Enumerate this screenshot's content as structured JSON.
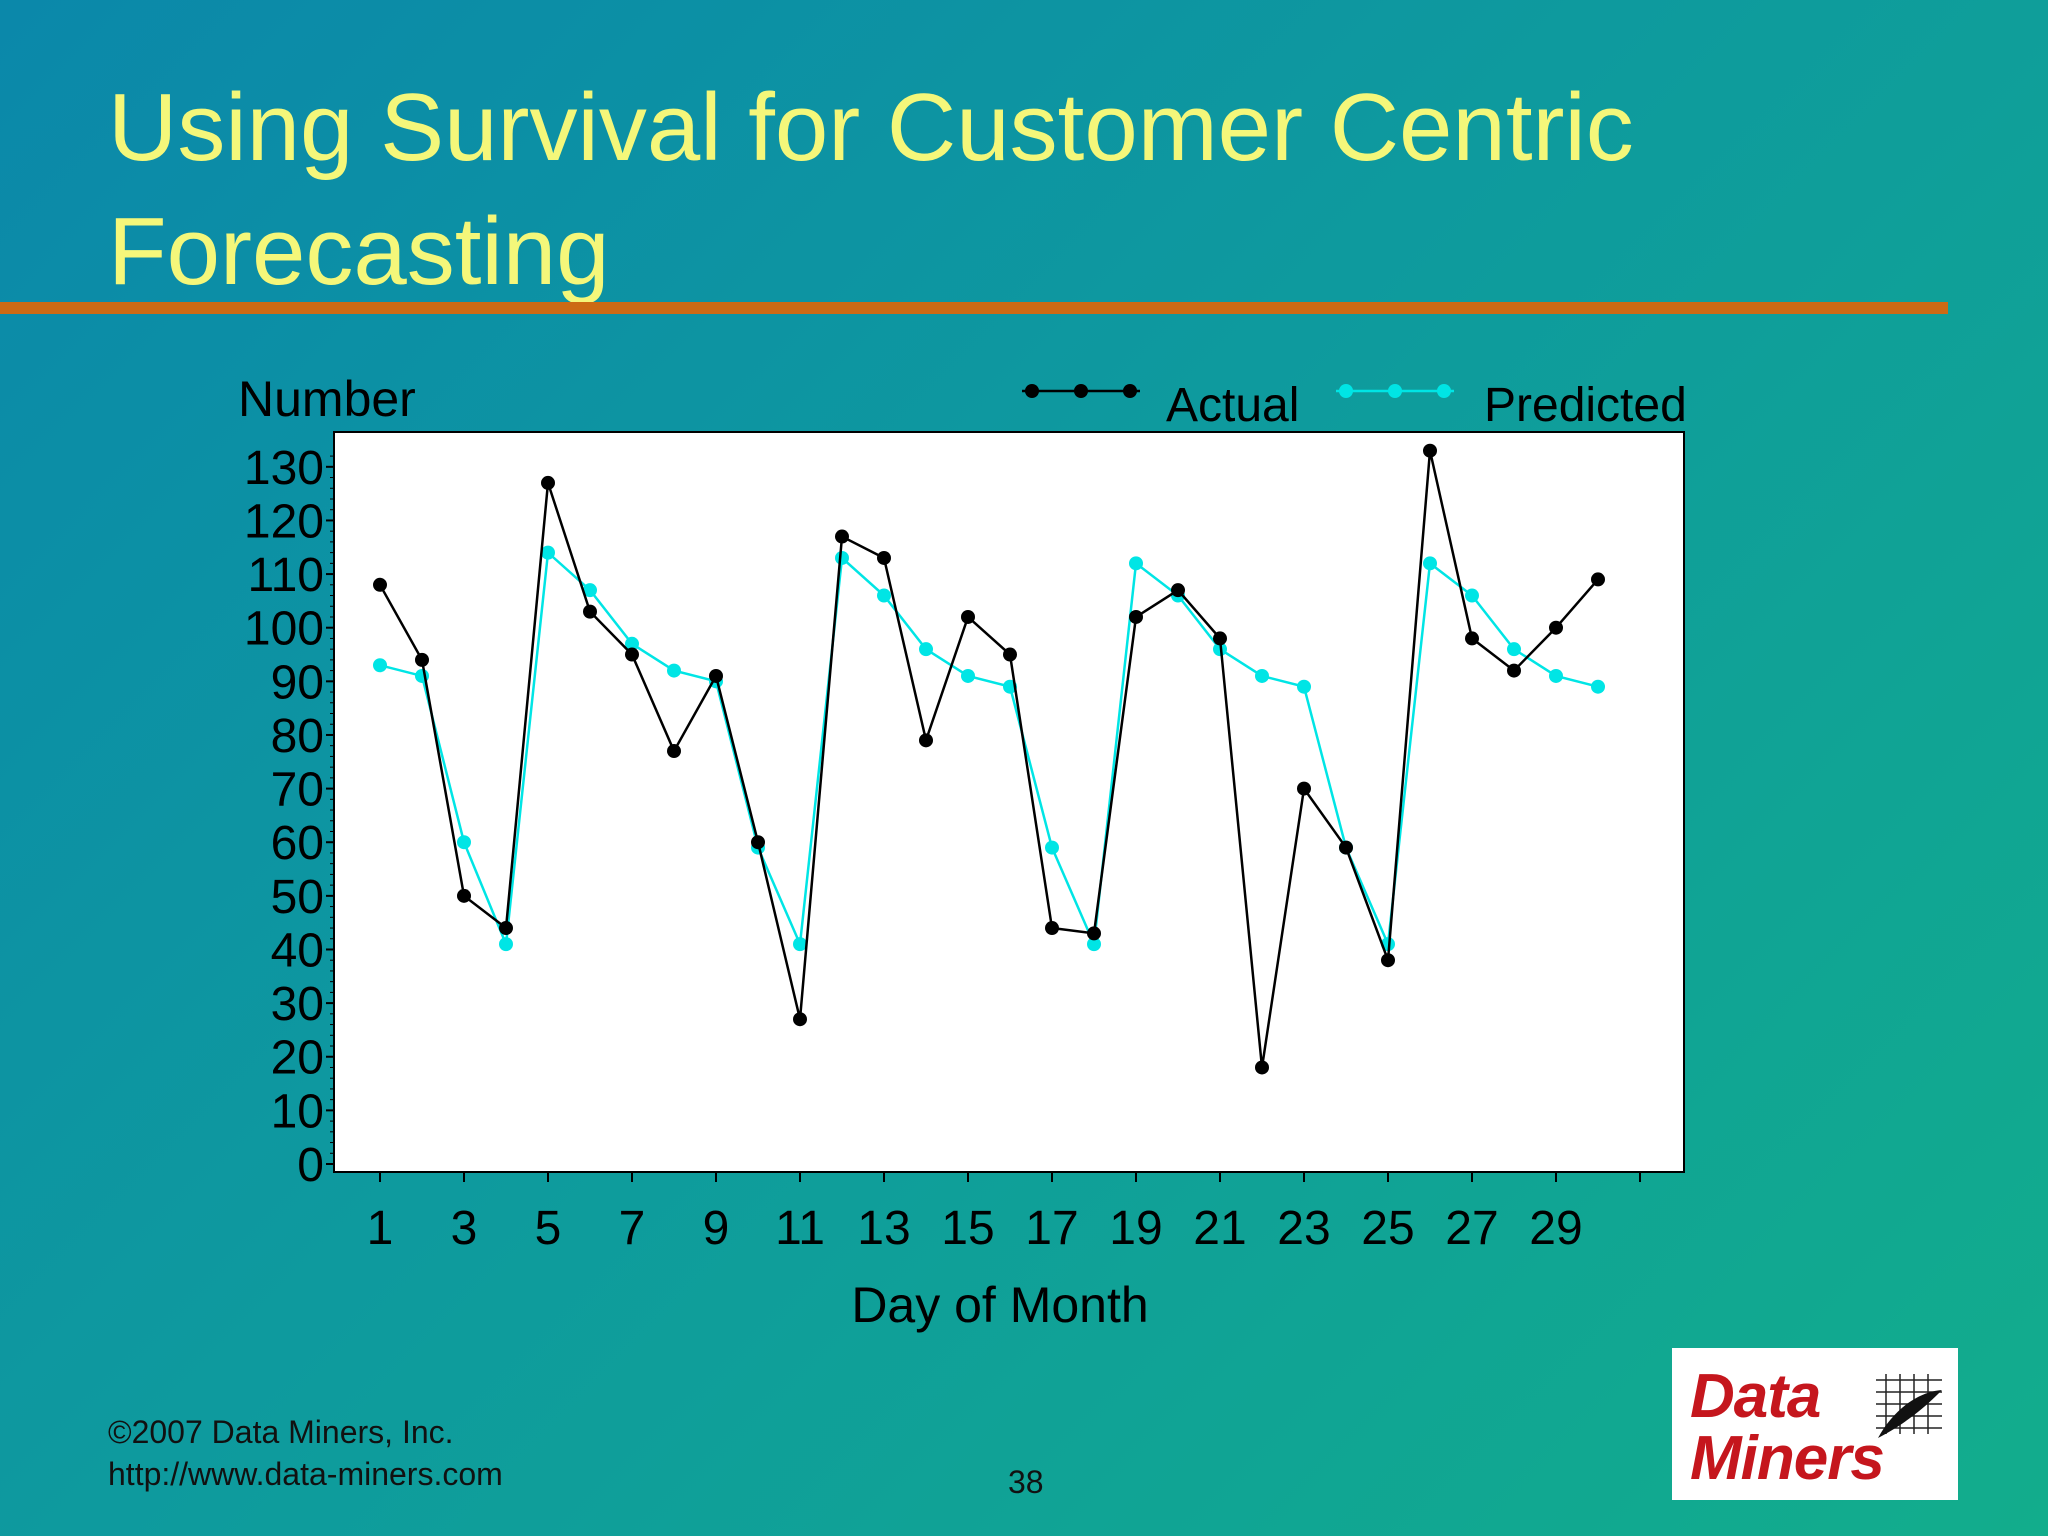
{
  "slide": {
    "title": "Using Survival for Customer Centric Forecasting",
    "footer_copyright": "©2007 Data Miners, Inc.",
    "footer_url": "http://www.data-miners.com",
    "page_number": "38",
    "logo_text": [
      "Data",
      "Miners"
    ],
    "colors": {
      "background": "#0e9aa0",
      "title": "#f4f77a",
      "rule": "#cc6a14",
      "logo_red": "#c5161d"
    }
  },
  "chart_data": {
    "type": "line",
    "title": "",
    "xlabel": "Day of Month",
    "ylabel": "Number",
    "x": [
      1,
      2,
      3,
      4,
      5,
      6,
      7,
      8,
      9,
      10,
      11,
      12,
      13,
      14,
      15,
      16,
      17,
      18,
      19,
      20,
      21,
      22,
      23,
      24,
      25,
      26,
      27,
      28,
      29,
      30
    ],
    "xlim": [
      0,
      31
    ],
    "ylim": [
      0,
      135
    ],
    "x_tick_labels": [
      "1",
      "3",
      "5",
      "7",
      "9",
      "11",
      "13",
      "15",
      "17",
      "19",
      "21",
      "23",
      "25",
      "27",
      "29"
    ],
    "y_tick_labels": [
      "0",
      "10",
      "20",
      "30",
      "40",
      "50",
      "60",
      "70",
      "80",
      "90",
      "100",
      "110",
      "120",
      "130"
    ],
    "legend_position": "top-right",
    "grid": false,
    "series": [
      {
        "name": "Actual",
        "color": "#000000",
        "values": [
          108,
          94,
          50,
          44,
          127,
          103,
          95,
          77,
          91,
          60,
          27,
          117,
          113,
          79,
          102,
          95,
          44,
          43,
          102,
          107,
          98,
          18,
          70,
          59,
          38,
          133,
          98,
          92,
          100,
          109
        ]
      },
      {
        "name": "Predicted",
        "color": "#00e5e5",
        "values": [
          93,
          91,
          60,
          41,
          114,
          107,
          97,
          92,
          90,
          59,
          41,
          113,
          106,
          96,
          91,
          89,
          59,
          41,
          112,
          106,
          96,
          91,
          89,
          59,
          41,
          112,
          106,
          96,
          91,
          89
        ]
      }
    ]
  }
}
